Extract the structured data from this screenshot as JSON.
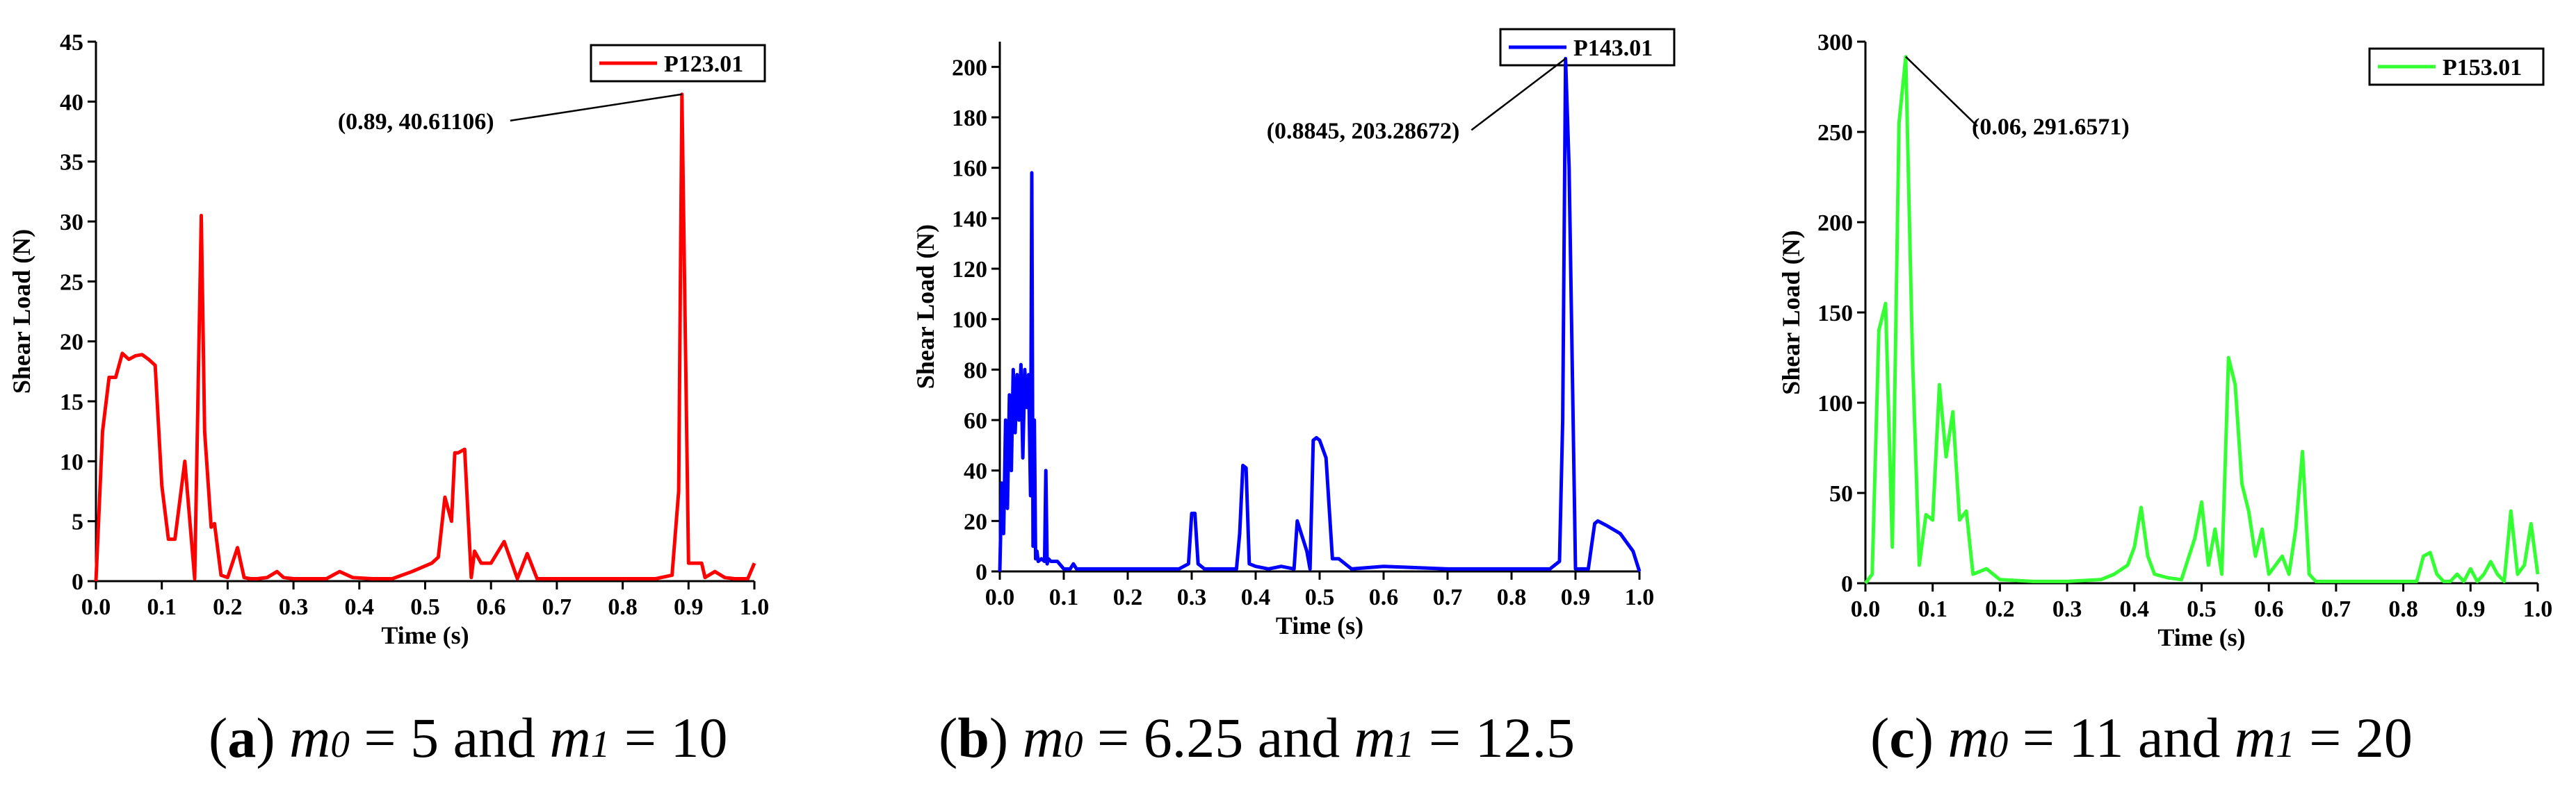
{
  "chart_data": [
    {
      "type": "line",
      "color": "#ff0000",
      "legend": "P123.01",
      "xlabel": "Time (s)",
      "ylabel": "Shear Load (N)",
      "xlim": [
        0,
        1.0
      ],
      "ylim": [
        0,
        45
      ],
      "xticks": [
        0.0,
        0.1,
        0.2,
        0.3,
        0.4,
        0.5,
        0.6,
        0.7,
        0.8,
        0.9,
        1.0
      ],
      "xtick_labels": [
        "0.0",
        "0.1",
        "0.2",
        "0.3",
        "0.4",
        "0.5",
        "0.6",
        "0.7",
        "0.8",
        "0.9",
        "1.0"
      ],
      "yticks": [
        0,
        5,
        10,
        15,
        20,
        25,
        30,
        35,
        40,
        45
      ],
      "ytick_labels": [
        "0",
        "5",
        "10",
        "15",
        "20",
        "25",
        "30",
        "35",
        "40",
        "45"
      ],
      "annotation": {
        "text": "(0.89, 40.61106)",
        "x": 0.89,
        "y": 40.61106
      },
      "caption": {
        "letter": "a",
        "m0_value": "5",
        "m1_value": "10",
        "m0": "m",
        "m0_sub": "0",
        "m1": "m",
        "m1_sub": "1",
        "eq": "=",
        "and": "and"
      },
      "x": [
        0.0,
        0.01,
        0.02,
        0.03,
        0.04,
        0.05,
        0.06,
        0.07,
        0.08,
        0.09,
        0.1,
        0.11,
        0.12,
        0.135,
        0.15,
        0.16,
        0.165,
        0.175,
        0.18,
        0.19,
        0.2,
        0.215,
        0.225,
        0.235,
        0.245,
        0.26,
        0.275,
        0.285,
        0.3,
        0.33,
        0.35,
        0.37,
        0.39,
        0.42,
        0.45,
        0.48,
        0.51,
        0.52,
        0.53,
        0.54,
        0.545,
        0.55,
        0.56,
        0.57,
        0.575,
        0.585,
        0.6,
        0.62,
        0.64,
        0.655,
        0.67,
        0.68,
        0.7,
        0.75,
        0.8,
        0.85,
        0.875,
        0.885,
        0.89,
        0.9,
        0.92,
        0.925,
        0.94,
        0.955,
        0.97,
        0.99,
        1.0
      ],
      "y": [
        0.0,
        12.5,
        17.0,
        17.0,
        19.0,
        18.5,
        18.8,
        18.9,
        18.5,
        18.0,
        8.0,
        3.5,
        3.5,
        10.0,
        0.2,
        30.5,
        12.5,
        4.5,
        4.8,
        0.5,
        0.3,
        2.8,
        0.3,
        0.2,
        0.2,
        0.3,
        0.8,
        0.3,
        0.2,
        0.2,
        0.2,
        0.8,
        0.3,
        0.2,
        0.2,
        0.8,
        1.5,
        2.0,
        7.0,
        5.0,
        10.7,
        10.7,
        11.0,
        0.3,
        2.5,
        1.5,
        1.5,
        3.3,
        0.2,
        2.3,
        0.2,
        0.2,
        0.2,
        0.2,
        0.2,
        0.2,
        0.5,
        7.5,
        40.61,
        1.5,
        1.5,
        0.3,
        0.8,
        0.3,
        0.2,
        0.2,
        1.5
      ]
    },
    {
      "type": "line",
      "color": "#0000ff",
      "legend": "P143.01",
      "xlabel": "Time (s)",
      "ylabel": "Shear Load (N)",
      "xlim": [
        0,
        1.0
      ],
      "ylim": [
        0,
        210
      ],
      "xticks": [
        0.0,
        0.1,
        0.2,
        0.3,
        0.4,
        0.5,
        0.6,
        0.7,
        0.8,
        0.9,
        1.0
      ],
      "xtick_labels": [
        "0.0",
        "0.1",
        "0.2",
        "0.3",
        "0.4",
        "0.5",
        "0.6",
        "0.7",
        "0.8",
        "0.9",
        "1.0"
      ],
      "yticks": [
        0,
        20,
        40,
        60,
        80,
        100,
        120,
        140,
        160,
        180,
        200
      ],
      "ytick_labels": [
        "0",
        "20",
        "40",
        "60",
        "80",
        "100",
        "120",
        "140",
        "160",
        "180",
        "200"
      ],
      "annotation": {
        "text": "(0.8845, 203.28672)",
        "x": 0.8845,
        "y": 203.28672
      },
      "caption": {
        "letter": "b",
        "m0_value": "6.25",
        "m1_value": "12.5",
        "m0": "m",
        "m0_sub": "0",
        "m1": "m",
        "m1_sub": "1",
        "eq": "=",
        "and": "and"
      },
      "x": [
        0.0,
        0.003,
        0.006,
        0.009,
        0.012,
        0.015,
        0.018,
        0.021,
        0.024,
        0.027,
        0.03,
        0.033,
        0.036,
        0.039,
        0.042,
        0.045,
        0.048,
        0.05,
        0.052,
        0.054,
        0.056,
        0.058,
        0.06,
        0.065,
        0.07,
        0.072,
        0.074,
        0.076,
        0.08,
        0.09,
        0.1,
        0.11,
        0.115,
        0.12,
        0.13,
        0.2,
        0.28,
        0.295,
        0.3,
        0.305,
        0.31,
        0.315,
        0.32,
        0.35,
        0.37,
        0.375,
        0.38,
        0.385,
        0.39,
        0.4,
        0.42,
        0.44,
        0.46,
        0.465,
        0.48,
        0.485,
        0.49,
        0.495,
        0.5,
        0.51,
        0.52,
        0.525,
        0.53,
        0.55,
        0.6,
        0.7,
        0.8,
        0.86,
        0.875,
        0.88,
        0.8845,
        0.89,
        0.9,
        0.91,
        0.92,
        0.93,
        0.935,
        0.95,
        0.97,
        0.99,
        1.0
      ],
      "y": [
        0,
        35,
        15,
        60,
        25,
        70,
        40,
        80,
        55,
        78,
        60,
        82,
        45,
        80,
        65,
        78,
        30,
        158,
        10,
        60,
        5,
        8,
        4,
        5,
        4,
        40,
        3,
        5,
        4,
        4,
        1,
        1,
        3,
        1,
        1,
        1,
        1,
        3,
        23,
        23,
        3,
        2,
        1,
        1,
        1,
        15,
        42,
        41,
        3,
        2,
        1,
        2,
        1,
        20,
        8,
        1,
        52,
        53,
        52,
        45,
        5,
        5,
        5,
        1,
        2,
        1,
        1,
        1,
        4,
        60,
        203.28,
        160,
        1,
        1,
        1,
        19,
        20,
        18,
        15,
        8,
        0
      ]
    },
    {
      "type": "line",
      "color": "#33ff33",
      "legend": "P153.01",
      "xlabel": "Time (s)",
      "ylabel": "Shear Load (N)",
      "xlim": [
        0,
        1.0
      ],
      "ylim": [
        0,
        300
      ],
      "xticks": [
        0.0,
        0.1,
        0.2,
        0.3,
        0.4,
        0.5,
        0.6,
        0.7,
        0.8,
        0.9,
        1.0
      ],
      "xtick_labels": [
        "0.0",
        "0.1",
        "0.2",
        "0.3",
        "0.4",
        "0.5",
        "0.6",
        "0.7",
        "0.8",
        "0.9",
        "1.0"
      ],
      "yticks": [
        0,
        50,
        100,
        150,
        200,
        250,
        300
      ],
      "ytick_labels": [
        "0",
        "50",
        "100",
        "150",
        "200",
        "250",
        "300"
      ],
      "annotation": {
        "text": "(0.06, 291.6571)",
        "x": 0.06,
        "y": 291.6571
      },
      "caption": {
        "letter": "c",
        "m0_value": "11",
        "m1_value": "20",
        "m0": "m",
        "m0_sub": "0",
        "m1": "m",
        "m1_sub": "1",
        "eq": "=",
        "and": "and"
      },
      "x": [
        0.0,
        0.01,
        0.02,
        0.03,
        0.04,
        0.05,
        0.06,
        0.07,
        0.08,
        0.09,
        0.1,
        0.11,
        0.12,
        0.13,
        0.14,
        0.15,
        0.16,
        0.18,
        0.2,
        0.25,
        0.3,
        0.35,
        0.37,
        0.39,
        0.4,
        0.41,
        0.42,
        0.43,
        0.45,
        0.47,
        0.49,
        0.5,
        0.51,
        0.52,
        0.53,
        0.54,
        0.55,
        0.56,
        0.57,
        0.58,
        0.59,
        0.6,
        0.62,
        0.63,
        0.64,
        0.65,
        0.66,
        0.67,
        0.7,
        0.75,
        0.8,
        0.82,
        0.83,
        0.84,
        0.85,
        0.86,
        0.87,
        0.88,
        0.89,
        0.9,
        0.91,
        0.92,
        0.93,
        0.94,
        0.95,
        0.96,
        0.97,
        0.98,
        0.99,
        1.0
      ],
      "y": [
        0,
        5,
        140,
        155,
        20,
        255,
        291.66,
        125,
        10,
        38,
        35,
        110,
        70,
        95,
        35,
        40,
        5,
        8,
        2,
        1,
        1,
        2,
        5,
        10,
        20,
        42,
        15,
        5,
        3,
        2,
        25,
        45,
        10,
        30,
        5,
        125,
        110,
        55,
        40,
        15,
        30,
        5,
        15,
        5,
        30,
        73,
        5,
        1,
        1,
        1,
        1,
        1,
        15,
        17,
        5,
        1,
        1,
        5,
        1,
        8,
        1,
        5,
        12,
        5,
        1,
        40,
        5,
        10,
        33,
        5
      ]
    }
  ]
}
